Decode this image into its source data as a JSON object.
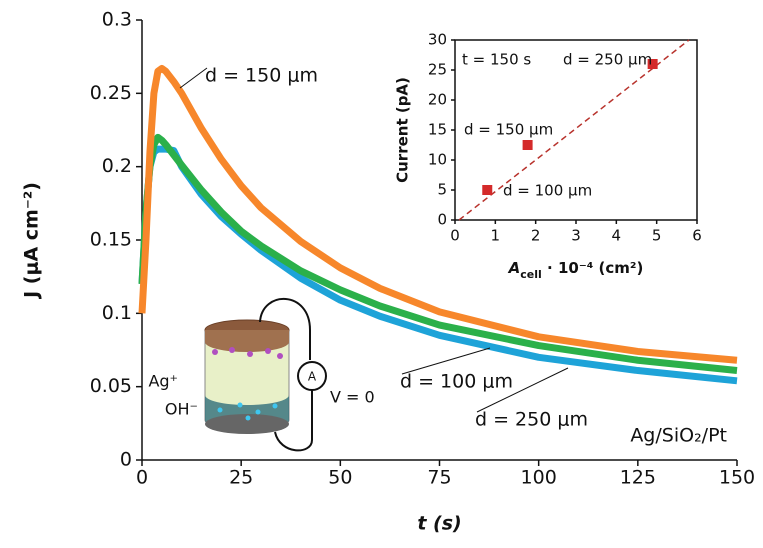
{
  "chart_data": [
    {
      "type": "line",
      "x_label": "t (s)",
      "y_label": "J (μA cm⁻²)",
      "xlim": [
        0,
        150
      ],
      "ylim": [
        0,
        0.3
      ],
      "xticks": [
        0,
        25,
        50,
        75,
        100,
        125,
        150
      ],
      "yticks": [
        0,
        0.05,
        0.1,
        0.15,
        0.2,
        0.25,
        0.3
      ],
      "x": [
        0,
        1,
        2,
        3,
        4,
        5,
        6,
        8,
        10,
        15,
        20,
        25,
        30,
        40,
        50,
        60,
        75,
        100,
        125,
        150
      ],
      "series": [
        {
          "name": "d = 250 μm",
          "color": "#1ea3d8",
          "values": [
            0.12,
            0.17,
            0.2,
            0.21,
            0.212,
            0.212,
            0.212,
            0.211,
            0.2,
            0.181,
            0.166,
            0.154,
            0.143,
            0.124,
            0.109,
            0.098,
            0.085,
            0.07,
            0.061,
            0.054
          ]
        },
        {
          "name": "d = 100 μm",
          "color": "#2bb04a",
          "values": [
            0.12,
            0.17,
            0.2,
            0.215,
            0.22,
            0.218,
            0.215,
            0.208,
            0.201,
            0.184,
            0.169,
            0.156,
            0.146,
            0.129,
            0.116,
            0.105,
            0.092,
            0.078,
            0.068,
            0.061
          ]
        },
        {
          "name": "d = 150 μm",
          "color": "#f7872b",
          "values": [
            0.1,
            0.15,
            0.21,
            0.25,
            0.265,
            0.267,
            0.265,
            0.258,
            0.25,
            0.226,
            0.205,
            0.187,
            0.172,
            0.149,
            0.131,
            0.117,
            0.101,
            0.084,
            0.074,
            0.068
          ]
        }
      ],
      "annotations": [
        "Ag/SiO₂/Pt",
        "Ag⁺",
        "OH⁻",
        "A",
        "V = 0"
      ]
    },
    {
      "type": "scatter",
      "x_label": [
        "A",
        "cell",
        " · 10⁻⁴ (cm²)"
      ],
      "y_label": "Current (pA)",
      "xlim": [
        0,
        6
      ],
      "ylim": [
        0,
        30
      ],
      "xticks": [
        0,
        1,
        2,
        3,
        4,
        5,
        6
      ],
      "yticks": [
        0,
        5,
        10,
        15,
        20,
        25,
        30
      ],
      "x": [
        0.8,
        1.8,
        4.9
      ],
      "values": [
        5,
        12.5,
        26
      ],
      "color": "#d42a2a",
      "point_labels": [
        "d = 100 μm",
        "d = 150 μm",
        "d = 250 μm"
      ],
      "annotation": "t = 150 s",
      "fit_line": {
        "x": [
          0.1,
          5.8
        ],
        "y": [
          0,
          30
        ]
      }
    }
  ]
}
